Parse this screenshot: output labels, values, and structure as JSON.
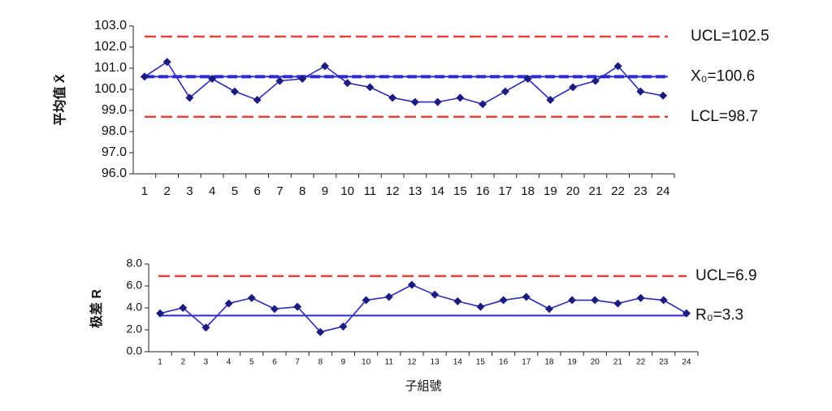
{
  "chart_data": [
    {
      "type": "line",
      "ylabel": "平均值 X̄",
      "categories": [
        "1",
        "2",
        "3",
        "4",
        "5",
        "6",
        "7",
        "8",
        "9",
        "10",
        "11",
        "12",
        "13",
        "14",
        "15",
        "16",
        "17",
        "18",
        "19",
        "20",
        "21",
        "22",
        "23",
        "24"
      ],
      "values": [
        100.6,
        101.3,
        99.6,
        100.5,
        99.9,
        99.5,
        100.4,
        100.5,
        101.1,
        100.3,
        100.1,
        99.6,
        99.4,
        99.4,
        99.6,
        99.3,
        99.9,
        100.5,
        99.5,
        100.1,
        100.4,
        101.1,
        99.9,
        99.7
      ],
      "color": "#2b2bb8",
      "marker_color": "#1c1c80",
      "ylim": [
        96,
        103
      ],
      "yticks": [
        {
          "value": 96,
          "label": "96.0"
        },
        {
          "value": 97,
          "label": "97.0"
        },
        {
          "value": 98,
          "label": "98.0"
        },
        {
          "value": 99,
          "label": "99.0"
        },
        {
          "value": 100,
          "label": "100.0"
        },
        {
          "value": 101,
          "label": "101.0"
        },
        {
          "value": 102,
          "label": "102.0"
        },
        {
          "value": 103,
          "label": "103.0"
        }
      ],
      "limits": [
        {
          "label": "UCL=102.5",
          "value": 102.5,
          "color": "#e8413c",
          "style": "dashed"
        },
        {
          "label": "X₀=100.6",
          "value": 100.6,
          "color": "#2b2bd0",
          "style": "center-dashed"
        },
        {
          "label": "LCL=98.7",
          "value": 98.7,
          "color": "#e8413c",
          "style": "dashed"
        }
      ]
    },
    {
      "type": "line",
      "ylabel": "极差 R",
      "xlabel": "子組號",
      "categories": [
        "1",
        "2",
        "3",
        "4",
        "5",
        "6",
        "7",
        "8",
        "9",
        "10",
        "11",
        "12",
        "13",
        "14",
        "15",
        "16",
        "17",
        "18",
        "19",
        "20",
        "21",
        "22",
        "23",
        "24"
      ],
      "values": [
        3.5,
        4.0,
        2.2,
        4.4,
        4.9,
        3.9,
        4.1,
        1.8,
        2.3,
        4.7,
        5.0,
        6.1,
        5.2,
        4.6,
        4.1,
        4.7,
        5.0,
        3.9,
        4.7,
        4.7,
        4.4,
        4.9,
        4.7,
        3.5
      ],
      "color": "#2b2bb8",
      "marker_color": "#1c1c80",
      "ylim": [
        0,
        8
      ],
      "yticks": [
        {
          "value": 0,
          "label": "0.0"
        },
        {
          "value": 2,
          "label": "2.0"
        },
        {
          "value": 4,
          "label": "4.0"
        },
        {
          "value": 6,
          "label": "6.0"
        },
        {
          "value": 8,
          "label": "8.0"
        }
      ],
      "limits": [
        {
          "label": "UCL=6.9",
          "value": 6.9,
          "color": "#e8413c",
          "style": "dashed"
        },
        {
          "label": "R₀=3.3",
          "value": 3.3,
          "color": "#2b2bd0",
          "style": "solid"
        }
      ]
    }
  ]
}
